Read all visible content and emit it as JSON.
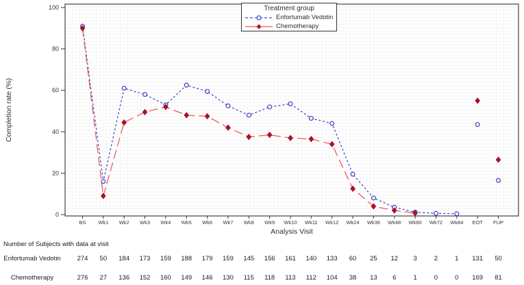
{
  "chart_data": {
    "type": "line",
    "title": "",
    "legend_title": "Treatment group",
    "legend_position": "top-center",
    "xlabel": "Analysis Visit",
    "ylabel": "Completion rate (%)",
    "ylim": [
      0,
      100
    ],
    "yticks": [
      0,
      20,
      40,
      60,
      80,
      100
    ],
    "grid": "faint fine background grid",
    "frame_color": "#333333",
    "text_color": "#333333",
    "categories": [
      "BS",
      "Wk1",
      "Wk2",
      "Wk3",
      "Wk4",
      "Wk5",
      "Wk6",
      "Wk7",
      "Wk8",
      "Wk9",
      "Wk10",
      "Wk11",
      "Wk12",
      "Wk24",
      "Wk36",
      "Wk48",
      "Wk60",
      "Wk72",
      "Wk84",
      "EOT",
      "FUP"
    ],
    "detached_categories": [
      "EOT",
      "FUP"
    ],
    "series": [
      {
        "name": "Enfortumab Vedotin",
        "line_color": "#4444cc",
        "marker_color": "#3d3dc4",
        "marker": "circle",
        "dash": "3 3",
        "legend_dash": "4 3",
        "values": [
          91,
          16,
          61,
          58,
          53,
          62.5,
          59.5,
          52.5,
          48,
          52,
          53.5,
          46.5,
          44,
          19.5,
          8,
          3.5,
          1.2,
          0.6,
          0.4,
          43.5,
          16.5
        ]
      },
      {
        "name": "Chemotherapy",
        "line_color": "#ee5555",
        "marker_color": "#a81228",
        "marker": "diamond",
        "dash": "13 6",
        "legend_dash": "",
        "values": [
          90,
          9,
          44.5,
          49.5,
          52,
          48,
          47.5,
          42,
          37.5,
          38.5,
          37,
          36.5,
          34,
          12.5,
          4,
          2,
          0.7,
          null,
          null,
          55,
          26.5
        ]
      }
    ]
  },
  "table": {
    "title": "Number of Subjects with data at visit",
    "rows": [
      {
        "label": "Enfortumab Vedotin",
        "values": [
          274,
          50,
          184,
          173,
          159,
          188,
          179,
          159,
          145,
          156,
          161,
          140,
          133,
          60,
          25,
          12,
          3,
          2,
          1,
          131,
          50
        ]
      },
      {
        "label": "Chemotherapy",
        "values": [
          276,
          27,
          136,
          152,
          160,
          149,
          146,
          130,
          115,
          118,
          113,
          112,
          104,
          38,
          13,
          6,
          1,
          0,
          0,
          169,
          81
        ]
      }
    ]
  }
}
